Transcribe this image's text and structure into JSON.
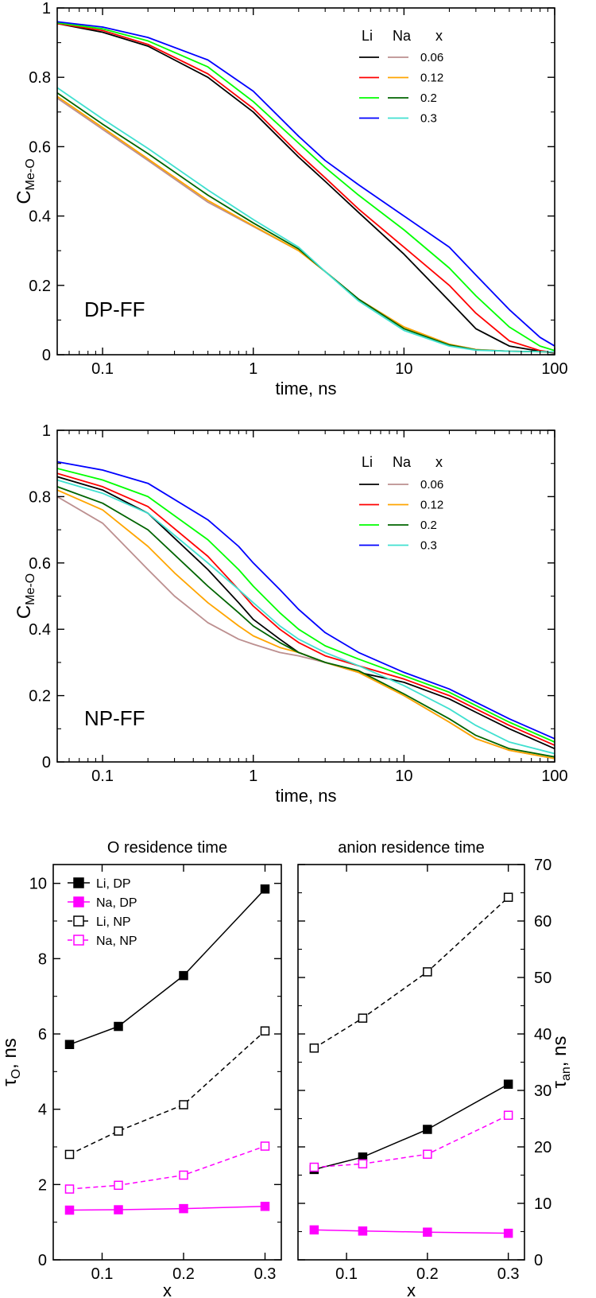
{
  "chart_data": [
    {
      "type": "line",
      "id": "dp",
      "xlabel": "time, ns",
      "ylabel": "C",
      "ylabel_sub": "Me-O",
      "xscale": "log",
      "xlim": [
        0.05,
        100
      ],
      "ylim": [
        0,
        1
      ],
      "xticks": [
        {
          "v": 0.1,
          "label": "0.1"
        },
        {
          "v": 1,
          "label": "1"
        },
        {
          "v": 10,
          "label": "10"
        },
        {
          "v": 100,
          "label": "100"
        }
      ],
      "yticks": [
        {
          "v": 0,
          "label": "0"
        },
        {
          "v": 0.2,
          "label": "0.2"
        },
        {
          "v": 0.4,
          "label": "0.4"
        },
        {
          "v": 0.6,
          "label": "0.6"
        },
        {
          "v": 0.8,
          "label": "0.8"
        },
        {
          "v": 1,
          "label": "1"
        }
      ],
      "annotation": "DP-FF",
      "legend": {
        "position": "top-right",
        "headers": [
          "Li",
          "Na",
          "x"
        ],
        "rows": [
          {
            "li_color": "#000000",
            "na_color": "#bc8f8f",
            "label": "0.06"
          },
          {
            "li_color": "#ff0000",
            "na_color": "#ffa500",
            "label": "0.12"
          },
          {
            "li_color": "#00ff00",
            "na_color": "#006400",
            "label": "0.2"
          },
          {
            "li_color": "#0000ff",
            "na_color": "#40e0d0",
            "label": "0.3"
          }
        ]
      },
      "series": [
        {
          "color": "#000000",
          "x": [
            0.05,
            0.1,
            0.2,
            0.5,
            1,
            2,
            3,
            5,
            10,
            20,
            30,
            50,
            80,
            100
          ],
          "values": [
            0.955,
            0.93,
            0.89,
            0.8,
            0.7,
            0.57,
            0.5,
            0.41,
            0.29,
            0.155,
            0.075,
            0.025,
            0.01,
            0.005
          ]
        },
        {
          "color": "#ff0000",
          "x": [
            0.05,
            0.1,
            0.2,
            0.5,
            1,
            2,
            3,
            5,
            10,
            20,
            30,
            50,
            80,
            100
          ],
          "values": [
            0.955,
            0.935,
            0.895,
            0.81,
            0.71,
            0.58,
            0.51,
            0.42,
            0.31,
            0.2,
            0.12,
            0.04,
            0.012,
            0.006
          ]
        },
        {
          "color": "#00ff00",
          "x": [
            0.05,
            0.1,
            0.2,
            0.5,
            1,
            2,
            3,
            5,
            10,
            20,
            30,
            50,
            80,
            100
          ],
          "values": [
            0.957,
            0.94,
            0.905,
            0.83,
            0.73,
            0.61,
            0.54,
            0.46,
            0.36,
            0.25,
            0.17,
            0.08,
            0.025,
            0.012
          ]
        },
        {
          "color": "#0000ff",
          "x": [
            0.05,
            0.1,
            0.2,
            0.5,
            1,
            2,
            3,
            5,
            10,
            20,
            30,
            50,
            80,
            100
          ],
          "values": [
            0.96,
            0.945,
            0.915,
            0.85,
            0.76,
            0.63,
            0.56,
            0.49,
            0.4,
            0.31,
            0.23,
            0.13,
            0.05,
            0.025
          ]
        },
        {
          "color": "#bc8f8f",
          "x": [
            0.05,
            0.1,
            0.2,
            0.5,
            1,
            2,
            3,
            5,
            10,
            20,
            30,
            50,
            100
          ],
          "values": [
            0.74,
            0.65,
            0.56,
            0.44,
            0.37,
            0.3,
            0.24,
            0.16,
            0.08,
            0.03,
            0.015,
            0.01,
            0.008
          ]
        },
        {
          "color": "#ffa500",
          "x": [
            0.05,
            0.1,
            0.2,
            0.5,
            1,
            2,
            3,
            5,
            10,
            20,
            30,
            50,
            100
          ],
          "values": [
            0.745,
            0.655,
            0.565,
            0.445,
            0.372,
            0.3,
            0.24,
            0.16,
            0.08,
            0.03,
            0.015,
            0.01,
            0.008
          ]
        },
        {
          "color": "#006400",
          "x": [
            0.05,
            0.1,
            0.2,
            0.5,
            1,
            2,
            3,
            5,
            10,
            20,
            30,
            50,
            100
          ],
          "values": [
            0.755,
            0.665,
            0.58,
            0.46,
            0.38,
            0.305,
            0.24,
            0.16,
            0.075,
            0.028,
            0.014,
            0.01,
            0.008
          ]
        },
        {
          "color": "#40e0d0",
          "x": [
            0.05,
            0.1,
            0.2,
            0.5,
            1,
            2,
            3,
            5,
            10,
            20,
            30,
            50,
            100
          ],
          "values": [
            0.77,
            0.68,
            0.595,
            0.475,
            0.39,
            0.31,
            0.24,
            0.155,
            0.07,
            0.025,
            0.013,
            0.01,
            0.008
          ]
        }
      ]
    },
    {
      "type": "line",
      "id": "np",
      "xlabel": "time, ns",
      "ylabel": "C",
      "ylabel_sub": "Me-O",
      "xscale": "log",
      "xlim": [
        0.05,
        100
      ],
      "ylim": [
        0,
        1
      ],
      "xticks": [
        {
          "v": 0.1,
          "label": "0.1"
        },
        {
          "v": 1,
          "label": "1"
        },
        {
          "v": 10,
          "label": "10"
        },
        {
          "v": 100,
          "label": "100"
        }
      ],
      "yticks": [
        {
          "v": 0,
          "label": "0"
        },
        {
          "v": 0.2,
          "label": "0.2"
        },
        {
          "v": 0.4,
          "label": "0.4"
        },
        {
          "v": 0.6,
          "label": "0.6"
        },
        {
          "v": 0.8,
          "label": "0.8"
        },
        {
          "v": 1,
          "label": "1"
        }
      ],
      "annotation": "NP-FF",
      "legend": {
        "position": "top-right",
        "headers": [
          "Li",
          "Na",
          "x"
        ],
        "rows": [
          {
            "li_color": "#000000",
            "na_color": "#bc8f8f",
            "label": "0.06"
          },
          {
            "li_color": "#ff0000",
            "na_color": "#ffa500",
            "label": "0.12"
          },
          {
            "li_color": "#00ff00",
            "na_color": "#006400",
            "label": "0.2"
          },
          {
            "li_color": "#0000ff",
            "na_color": "#40e0d0",
            "label": "0.3"
          }
        ]
      },
      "series": [
        {
          "color": "#000000",
          "x": [
            0.05,
            0.1,
            0.2,
            0.5,
            0.8,
            1,
            1.5,
            2,
            3,
            5,
            10,
            20,
            30,
            50,
            100
          ],
          "values": [
            0.86,
            0.82,
            0.75,
            0.58,
            0.48,
            0.43,
            0.37,
            0.33,
            0.3,
            0.27,
            0.24,
            0.19,
            0.15,
            0.1,
            0.04
          ]
        },
        {
          "color": "#ff0000",
          "x": [
            0.05,
            0.1,
            0.2,
            0.5,
            0.8,
            1,
            1.5,
            2,
            3,
            5,
            10,
            20,
            30,
            50,
            100
          ],
          "values": [
            0.87,
            0.83,
            0.77,
            0.62,
            0.52,
            0.47,
            0.4,
            0.36,
            0.32,
            0.29,
            0.25,
            0.2,
            0.16,
            0.11,
            0.05
          ]
        },
        {
          "color": "#00ff00",
          "x": [
            0.05,
            0.1,
            0.2,
            0.5,
            0.8,
            1,
            1.5,
            2,
            3,
            5,
            10,
            20,
            30,
            50,
            100
          ],
          "values": [
            0.885,
            0.85,
            0.8,
            0.67,
            0.58,
            0.53,
            0.45,
            0.4,
            0.35,
            0.31,
            0.26,
            0.21,
            0.17,
            0.12,
            0.06
          ]
        },
        {
          "color": "#0000ff",
          "x": [
            0.05,
            0.1,
            0.2,
            0.5,
            0.8,
            1,
            1.5,
            2,
            3,
            5,
            10,
            20,
            30,
            50,
            100
          ],
          "values": [
            0.905,
            0.88,
            0.84,
            0.73,
            0.65,
            0.6,
            0.52,
            0.46,
            0.39,
            0.33,
            0.27,
            0.22,
            0.18,
            0.13,
            0.07
          ]
        },
        {
          "color": "#bc8f8f",
          "x": [
            0.05,
            0.1,
            0.2,
            0.3,
            0.5,
            0.8,
            1,
            1.5,
            2,
            3,
            5,
            10,
            20,
            30,
            50,
            100
          ],
          "values": [
            0.8,
            0.72,
            0.58,
            0.5,
            0.42,
            0.37,
            0.355,
            0.33,
            0.32,
            0.3,
            0.27,
            0.2,
            0.12,
            0.07,
            0.035,
            0.01
          ]
        },
        {
          "color": "#ffa500",
          "x": [
            0.05,
            0.1,
            0.2,
            0.3,
            0.5,
            0.8,
            1,
            1.5,
            2,
            3,
            5,
            10,
            20,
            30,
            50,
            100
          ],
          "values": [
            0.82,
            0.76,
            0.65,
            0.57,
            0.48,
            0.41,
            0.38,
            0.345,
            0.33,
            0.3,
            0.27,
            0.2,
            0.12,
            0.07,
            0.035,
            0.01
          ]
        },
        {
          "color": "#006400",
          "x": [
            0.05,
            0.1,
            0.2,
            0.5,
            0.8,
            1,
            1.5,
            2,
            3,
            5,
            10,
            20,
            30,
            50,
            100
          ],
          "values": [
            0.83,
            0.78,
            0.7,
            0.53,
            0.45,
            0.41,
            0.36,
            0.33,
            0.3,
            0.275,
            0.205,
            0.13,
            0.08,
            0.04,
            0.015
          ]
        },
        {
          "color": "#40e0d0",
          "x": [
            0.05,
            0.1,
            0.2,
            0.5,
            0.8,
            1,
            1.5,
            2,
            3,
            5,
            10,
            20,
            30,
            50,
            100
          ],
          "values": [
            0.85,
            0.81,
            0.75,
            0.6,
            0.52,
            0.48,
            0.41,
            0.37,
            0.33,
            0.29,
            0.23,
            0.16,
            0.11,
            0.06,
            0.025
          ]
        }
      ]
    },
    {
      "type": "line",
      "id": "o_res",
      "title": "O residence time",
      "xlabel": "x",
      "ylabel": "τ",
      "ylabel_sub": "O",
      "ylabel_suffix": ", ns",
      "xlim": [
        0.04,
        0.32
      ],
      "ylim": [
        0,
        10.5
      ],
      "xticks": [
        {
          "v": 0.1,
          "label": "0.1"
        },
        {
          "v": 0.2,
          "label": "0.2"
        },
        {
          "v": 0.3,
          "label": "0.3"
        }
      ],
      "yticks": [
        {
          "v": 0,
          "label": "0"
        },
        {
          "v": 2,
          "label": "2"
        },
        {
          "v": 4,
          "label": "4"
        },
        {
          "v": 6,
          "label": "6"
        },
        {
          "v": 8,
          "label": "8"
        },
        {
          "v": 10,
          "label": "10"
        }
      ],
      "legend": {
        "position": "top-left"
      },
      "series": [
        {
          "name": "Li, DP",
          "color": "#000000",
          "filled": true,
          "dashed": false,
          "x": [
            0.06,
            0.12,
            0.2,
            0.3
          ],
          "values": [
            5.72,
            6.2,
            7.55,
            9.85
          ]
        },
        {
          "name": "Na, DP",
          "color": "#ff00ff",
          "filled": true,
          "dashed": false,
          "x": [
            0.06,
            0.12,
            0.2,
            0.3
          ],
          "values": [
            1.32,
            1.33,
            1.36,
            1.42
          ]
        },
        {
          "name": "Li, NP",
          "color": "#000000",
          "filled": false,
          "dashed": true,
          "x": [
            0.06,
            0.12,
            0.2,
            0.3
          ],
          "values": [
            2.8,
            3.42,
            4.12,
            6.08
          ]
        },
        {
          "name": "Na, NP",
          "color": "#ff00ff",
          "filled": false,
          "dashed": true,
          "x": [
            0.06,
            0.12,
            0.2,
            0.3
          ],
          "values": [
            1.88,
            1.98,
            2.25,
            3.02
          ]
        }
      ]
    },
    {
      "type": "line",
      "id": "an_res",
      "title": "anion residence time",
      "xlabel": "x",
      "ylabel": "τ",
      "ylabel_sub": "an",
      "ylabel_suffix": ", ns",
      "xlim": [
        0.04,
        0.32
      ],
      "ylim": [
        0,
        70
      ],
      "xticks": [
        {
          "v": 0.1,
          "label": "0.1"
        },
        {
          "v": 0.2,
          "label": "0.2"
        },
        {
          "v": 0.3,
          "label": "0.3"
        }
      ],
      "yticks": [
        {
          "v": 0,
          "label": "0"
        },
        {
          "v": 10,
          "label": "10"
        },
        {
          "v": 20,
          "label": "20"
        },
        {
          "v": 30,
          "label": "30"
        },
        {
          "v": 40,
          "label": "40"
        },
        {
          "v": 50,
          "label": "50"
        },
        {
          "v": 60,
          "label": "60"
        },
        {
          "v": 70,
          "label": "70"
        }
      ],
      "series": [
        {
          "color": "#000000",
          "filled": true,
          "dashed": false,
          "x": [
            0.06,
            0.12,
            0.2,
            0.3
          ],
          "values": [
            16,
            18.2,
            23.1,
            31.1
          ]
        },
        {
          "color": "#ff00ff",
          "filled": true,
          "dashed": false,
          "x": [
            0.06,
            0.12,
            0.2,
            0.3
          ],
          "values": [
            5.3,
            5.1,
            4.9,
            4.7
          ]
        },
        {
          "color": "#000000",
          "filled": false,
          "dashed": true,
          "x": [
            0.06,
            0.12,
            0.2,
            0.3
          ],
          "values": [
            37.5,
            42.8,
            51.0,
            64.2
          ]
        },
        {
          "color": "#ff00ff",
          "filled": false,
          "dashed": true,
          "x": [
            0.06,
            0.12,
            0.2,
            0.3
          ],
          "values": [
            16.4,
            17.0,
            18.7,
            25.6
          ]
        }
      ]
    }
  ]
}
